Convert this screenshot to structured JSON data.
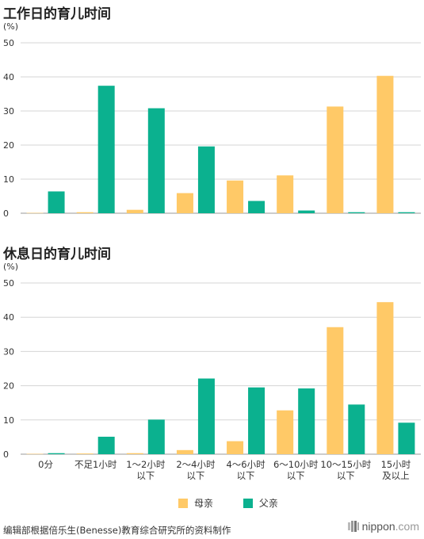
{
  "chart_data": [
    {
      "type": "bar",
      "title": "工作日的育儿时间",
      "unit": "(%)",
      "ylim": [
        0,
        50
      ],
      "yticks": [
        "0",
        "10",
        "20",
        "30",
        "40",
        "50"
      ],
      "categories": [
        "0分",
        "不足1小时",
        "1～2小时\n以下",
        "2～4小时\n以下",
        "4～6小时\n以下",
        "6～10小时\n以下",
        "10～15小时\n以下",
        "15小时\n及以上"
      ],
      "series": [
        {
          "name": "母亲",
          "color": "#FFC967",
          "values": [
            0.1,
            0.3,
            1.0,
            5.9,
            9.6,
            11.1,
            31.3,
            40.3
          ]
        },
        {
          "name": "父亲",
          "color": "#0BB18F",
          "values": [
            6.4,
            37.4,
            30.8,
            19.6,
            3.6,
            0.8,
            0.3,
            0.3
          ]
        }
      ],
      "grid": true
    },
    {
      "type": "bar",
      "title": "休息日的育儿时间",
      "unit": "(%)",
      "ylim": [
        0,
        50
      ],
      "yticks": [
        "0",
        "10",
        "20",
        "30",
        "40",
        "50"
      ],
      "categories": [
        "0分",
        "不足1小时",
        "1～2小时\n以下",
        "2～4小时\n以下",
        "4～6小时\n以下",
        "6～10小时\n以下",
        "10～15小时\n以下",
        "15小时\n及以上"
      ],
      "series": [
        {
          "name": "母亲",
          "color": "#FFC967",
          "values": [
            0.1,
            0.2,
            0.3,
            1.2,
            3.8,
            12.8,
            37.1,
            44.4
          ]
        },
        {
          "name": "父亲",
          "color": "#0BB18F",
          "values": [
            0.3,
            5.1,
            10.1,
            22.1,
            19.5,
            19.2,
            14.5,
            9.2
          ]
        }
      ],
      "grid": true
    }
  ],
  "legend": [
    {
      "label": "母亲",
      "color": "#FFC967"
    },
    {
      "label": "父亲",
      "color": "#0BB18F"
    }
  ],
  "footer": {
    "source": "编辑部根据倍乐生(Benesse)教育综合研究所的资料制作",
    "logo_main": "nippon",
    "logo_tld": ".com"
  }
}
